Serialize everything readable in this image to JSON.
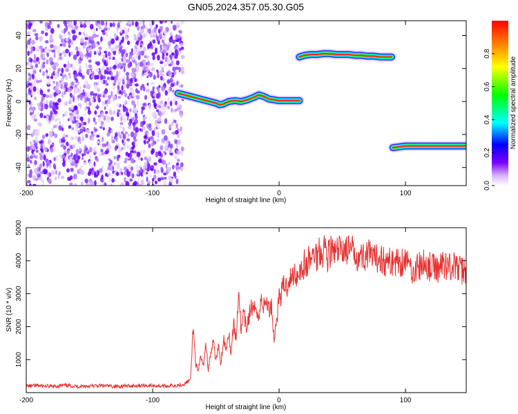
{
  "figure": {
    "title": "GN05.2024.357.05.30.G05"
  },
  "chart_data": [
    {
      "type": "heatmap",
      "title": "GN05.2024.357.05.30.G05",
      "xlabel": "Height of straight line (km)",
      "ylabel": "Frequency (Hz)",
      "xlim": [
        -200,
        148
      ],
      "ylim": [
        -51,
        49
      ],
      "x_ticks": [
        "-200",
        "-100",
        "0",
        "100"
      ],
      "x_tick_values": [
        -200,
        -100,
        0,
        100
      ],
      "y_ticks": [
        "40",
        "20",
        "0",
        "-20",
        "-40"
      ],
      "y_tick_values": [
        40,
        20,
        0,
        -20,
        -40
      ],
      "noise_region": {
        "x": [
          -200,
          -76
        ],
        "y": [
          -51,
          49
        ],
        "color": "#7B1FFF"
      },
      "ridges": [
        {
          "name": "",
          "points": [
            [
              -80,
              5
            ],
            [
              -75,
              4
            ],
            [
              -70,
              3
            ],
            [
              -65,
              2
            ],
            [
              -60,
              1
            ],
            [
              -55,
              0
            ],
            [
              -50,
              -1
            ],
            [
              -47,
              -2
            ],
            [
              -44,
              -1.5
            ],
            [
              -40,
              0
            ],
            [
              -35,
              0.5
            ],
            [
              -30,
              0
            ],
            [
              -25,
              1
            ],
            [
              -20,
              2.5
            ],
            [
              -16,
              4
            ],
            [
              -12,
              3
            ],
            [
              -8,
              1.5
            ],
            [
              -4,
              1
            ],
            [
              0,
              0.5
            ],
            [
              4,
              0.5
            ],
            [
              8,
              0.5
            ],
            [
              16,
              0.5
            ]
          ]
        },
        {
          "name": "",
          "points": [
            [
              16,
              27
            ],
            [
              20,
              28
            ],
            [
              25,
              28.5
            ],
            [
              30,
              28.5
            ],
            [
              35,
              29
            ],
            [
              40,
              29
            ],
            [
              45,
              28.5
            ],
            [
              50,
              28.5
            ],
            [
              55,
              28.5
            ],
            [
              60,
              28
            ],
            [
              65,
              28
            ],
            [
              70,
              27.5
            ],
            [
              75,
              27.5
            ],
            [
              80,
              27
            ],
            [
              85,
              27
            ],
            [
              89,
              27
            ]
          ]
        },
        {
          "name": "",
          "points": [
            [
              90,
              -28
            ],
            [
              95,
              -27.5
            ],
            [
              100,
              -27
            ],
            [
              105,
              -27
            ],
            [
              110,
              -27
            ],
            [
              115,
              -27
            ],
            [
              120,
              -27
            ],
            [
              125,
              -27
            ],
            [
              130,
              -27
            ],
            [
              135,
              -27
            ],
            [
              140,
              -27
            ],
            [
              148,
              -27
            ]
          ]
        }
      ],
      "colorbar": {
        "label": "Normalized spectral amplitude",
        "ticks": [
          "0.0",
          "0.2",
          "0.4",
          "0.6",
          "0.8"
        ],
        "tick_values": [
          0.0,
          0.2,
          0.4,
          0.6,
          0.8
        ],
        "range": [
          0,
          1
        ],
        "colors": [
          "#ffffff",
          "#d9b3ff",
          "#7a00ff",
          "#0000ff",
          "#00ffff",
          "#00ff00",
          "#ffff00",
          "#ff8000",
          "#ff0000"
        ]
      },
      "grid": false
    },
    {
      "type": "line",
      "xlabel": "Height of straight line (km)",
      "ylabel": "SNR (10 * v/v)",
      "xlim": [
        -200,
        148
      ],
      "ylim": [
        0,
        5000
      ],
      "x_ticks": [
        "-200",
        "-100",
        "0",
        "100"
      ],
      "x_tick_values": [
        -200,
        -100,
        0,
        100
      ],
      "y_ticks": [
        "1000",
        "2000",
        "3000",
        "4000",
        "5000"
      ],
      "y_tick_values": [
        1000,
        2000,
        3000,
        4000,
        5000
      ],
      "color": "#e83030",
      "series": [
        {
          "x": [
            -200,
            -190,
            -180,
            -170,
            -160,
            -150,
            -140,
            -130,
            -120,
            -110,
            -100,
            -90,
            -80,
            -75,
            -70,
            -68,
            -66,
            -64,
            -62,
            -60,
            -58,
            -56,
            -54,
            -52,
            -50,
            -48,
            -46,
            -44,
            -42,
            -40,
            -38,
            -36,
            -34,
            -32,
            -30,
            -28,
            -26,
            -24,
            -22,
            -20,
            -18,
            -16,
            -14,
            -12,
            -10,
            -8,
            -6,
            -4,
            -2,
            0,
            2,
            4,
            6,
            8,
            10,
            12,
            14,
            16,
            18,
            20,
            22,
            24,
            26,
            28,
            30,
            32,
            34,
            36,
            38,
            40,
            45,
            50,
            55,
            60,
            65,
            70,
            75,
            80,
            85,
            90,
            95,
            100,
            105,
            110,
            115,
            120,
            125,
            130,
            135,
            140,
            145,
            148
          ],
          "values": [
            200,
            210,
            180,
            220,
            190,
            200,
            210,
            190,
            200,
            220,
            210,
            200,
            230,
            260,
            400,
            2000,
            900,
            600,
            1100,
            800,
            1500,
            700,
            1200,
            1500,
            1000,
            1400,
            800,
            1700,
            1300,
            1900,
            1200,
            2100,
            1600,
            3200,
            1800,
            2400,
            1900,
            2300,
            2600,
            2400,
            2700,
            2200,
            2900,
            2600,
            2800,
            2500,
            2700,
            1600,
            2200,
            2900,
            3000,
            3300,
            3200,
            3500,
            3400,
            3700,
            3500,
            3800,
            3700,
            3900,
            3800,
            4100,
            4000,
            4300,
            4100,
            4400,
            4200,
            4500,
            4100,
            4300,
            4200,
            4400,
            4300,
            4250,
            4100,
            4200,
            4000,
            4150,
            3900,
            4000,
            3950,
            4050,
            3700,
            3800,
            3900,
            3800,
            3750,
            3900,
            3850,
            3800,
            3700,
            3750
          ]
        }
      ],
      "grid": false
    }
  ]
}
